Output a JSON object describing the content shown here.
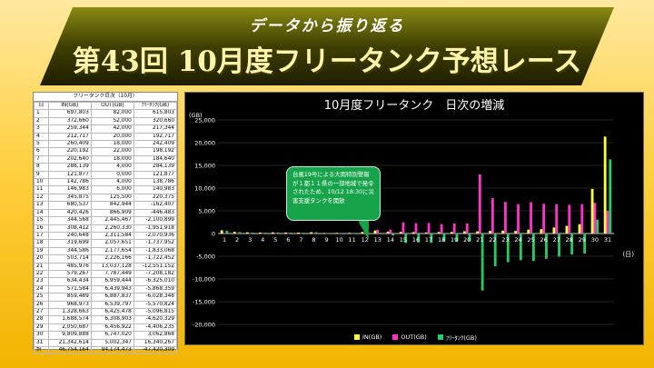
{
  "banner": {
    "subtitle": "データから振り返る",
    "title": "第43回 10月度フリータンク予想レース"
  },
  "table": {
    "caption": "フリータンク日次（10月）",
    "headers": [
      "日",
      "IN(GB)",
      "OUT(GB)",
      "ﾌﾘｰﾀﾝｸ(GB)"
    ],
    "rows": [
      [
        "1",
        "697,803",
        "82,000",
        "615,803"
      ],
      [
        "2",
        "372,660",
        "52,000",
        "320,660"
      ],
      [
        "3",
        "259,344",
        "42,000",
        "217,344"
      ],
      [
        "4",
        "212,717",
        "20,000",
        "192,717"
      ],
      [
        "5",
        "260,409",
        "18,000",
        "242,409"
      ],
      [
        "6",
        "220,192",
        "22,000",
        "198,192"
      ],
      [
        "7",
        "202,640",
        "18,000",
        "184,640"
      ],
      [
        "8",
        "288,139",
        "4,000",
        "284,139"
      ],
      [
        "9",
        "121,877",
        "0,000",
        "121,877"
      ],
      [
        "10",
        "142,786",
        "4,000",
        "138,786"
      ],
      [
        "11",
        "146,983",
        "6,000",
        "140,983"
      ],
      [
        "12",
        "345,875",
        "125,500",
        "220,375"
      ],
      [
        "13",
        "680,537",
        "842,944",
        "-162,407"
      ],
      [
        "14",
        "420,426",
        "866,909",
        "-446,483"
      ],
      [
        "15",
        "344,568",
        "2,445,467",
        "-2,100,899"
      ],
      [
        "16",
        "308,412",
        "2,260,330",
        "-1,951,918"
      ],
      [
        "17",
        "240,648",
        "2,311,584",
        "-2,070,936"
      ],
      [
        "18",
        "319,699",
        "2,057,651",
        "-1,737,952"
      ],
      [
        "19",
        "344,586",
        "2,177,654",
        "-1,833,068"
      ],
      [
        "20",
        "503,714",
        "2,226,166",
        "-1,722,452"
      ],
      [
        "21",
        "485,976",
        "13,037,128",
        "-12,551,152"
      ],
      [
        "22",
        "579,267",
        "7,787,449",
        "-7,208,182"
      ],
      [
        "23",
        "634,434",
        "6,959,444",
        "-6,325,010"
      ],
      [
        "24",
        "571,584",
        "6,439,943",
        "-5,868,359"
      ],
      [
        "25",
        "859,489",
        "6,887,837",
        "-6,028,348"
      ],
      [
        "26",
        "968,973",
        "6,539,797",
        "-5,570,824"
      ],
      [
        "27",
        "1,328,663",
        "6,425,478",
        "-5,096,815"
      ],
      [
        "28",
        "1,688,574",
        "6,308,903",
        "-4,620,329"
      ],
      [
        "29",
        "2,050,687",
        "6,456,922",
        "-4,406,235"
      ],
      [
        "30",
        "9,809,888",
        "6,747,020",
        "3,062,868"
      ],
      [
        "31",
        "21,342,614",
        "5,002,347",
        "16,340,267"
      ],
      [
        "計",
        "46,754,164",
        "94,174,473",
        "-47,420,309"
      ]
    ]
  },
  "chart": {
    "unit": "(GB)",
    "x_unit": "(日)",
    "callout": "台風19号による大雨特別警報が１都１１県の一部地域で発令されたため、10/12 18:30に災害支援タンクを開放",
    "colors": {
      "in": "#ffff33",
      "out": "#ff33cc",
      "free": "#22cc66",
      "axis": "#ffffff",
      "grid": "#444444"
    }
  },
  "chart_data": {
    "type": "bar",
    "title": "10月度フリータンク　日次の増減",
    "ylabel": "(GB)",
    "xlabel": "(日)",
    "ylim": [
      -20000,
      25000
    ],
    "yticks": [
      -20000,
      -15000,
      -10000,
      -5000,
      0,
      5000,
      10000,
      15000,
      20000,
      25000
    ],
    "ytick_labels": [
      "-20,000",
      "-15,000",
      "-10,000",
      "-5,000",
      "0",
      "5,000",
      "10,000",
      "15,000",
      "20,000",
      "25,000"
    ],
    "categories": [
      "1",
      "2",
      "3",
      "4",
      "5",
      "6",
      "7",
      "8",
      "9",
      "10",
      "11",
      "12",
      "13",
      "14",
      "15",
      "16",
      "17",
      "18",
      "19",
      "20",
      "21",
      "22",
      "23",
      "24",
      "25",
      "26",
      "27",
      "28",
      "29",
      "30",
      "31"
    ],
    "series": [
      {
        "name": "IN(GB)",
        "values": [
          698,
          373,
          259,
          213,
          260,
          220,
          203,
          288,
          122,
          143,
          147,
          346,
          681,
          420,
          345,
          308,
          241,
          320,
          345,
          504,
          486,
          579,
          634,
          572,
          859,
          969,
          1329,
          1689,
          2051,
          9810,
          21343
        ]
      },
      {
        "name": "OUT(GB)",
        "values": [
          82,
          52,
          42,
          20,
          18,
          22,
          18,
          4,
          0,
          4,
          6,
          126,
          843,
          867,
          2445,
          2260,
          2312,
          2058,
          2178,
          2226,
          13037,
          7787,
          6959,
          6440,
          6888,
          6540,
          6425,
          6309,
          6457,
          6747,
          5002
        ]
      },
      {
        "name": "ﾌﾘｰﾀﾝｸ(GB)",
        "values": [
          616,
          321,
          217,
          193,
          242,
          198,
          185,
          284,
          122,
          139,
          141,
          220,
          -162,
          -446,
          -2101,
          -1952,
          -2071,
          -1738,
          -1833,
          -1722,
          -12551,
          -7208,
          -6325,
          -5868,
          -6028,
          -5571,
          -5097,
          -4620,
          -4406,
          3063,
          16340
        ]
      }
    ],
    "legend": "bottom"
  }
}
